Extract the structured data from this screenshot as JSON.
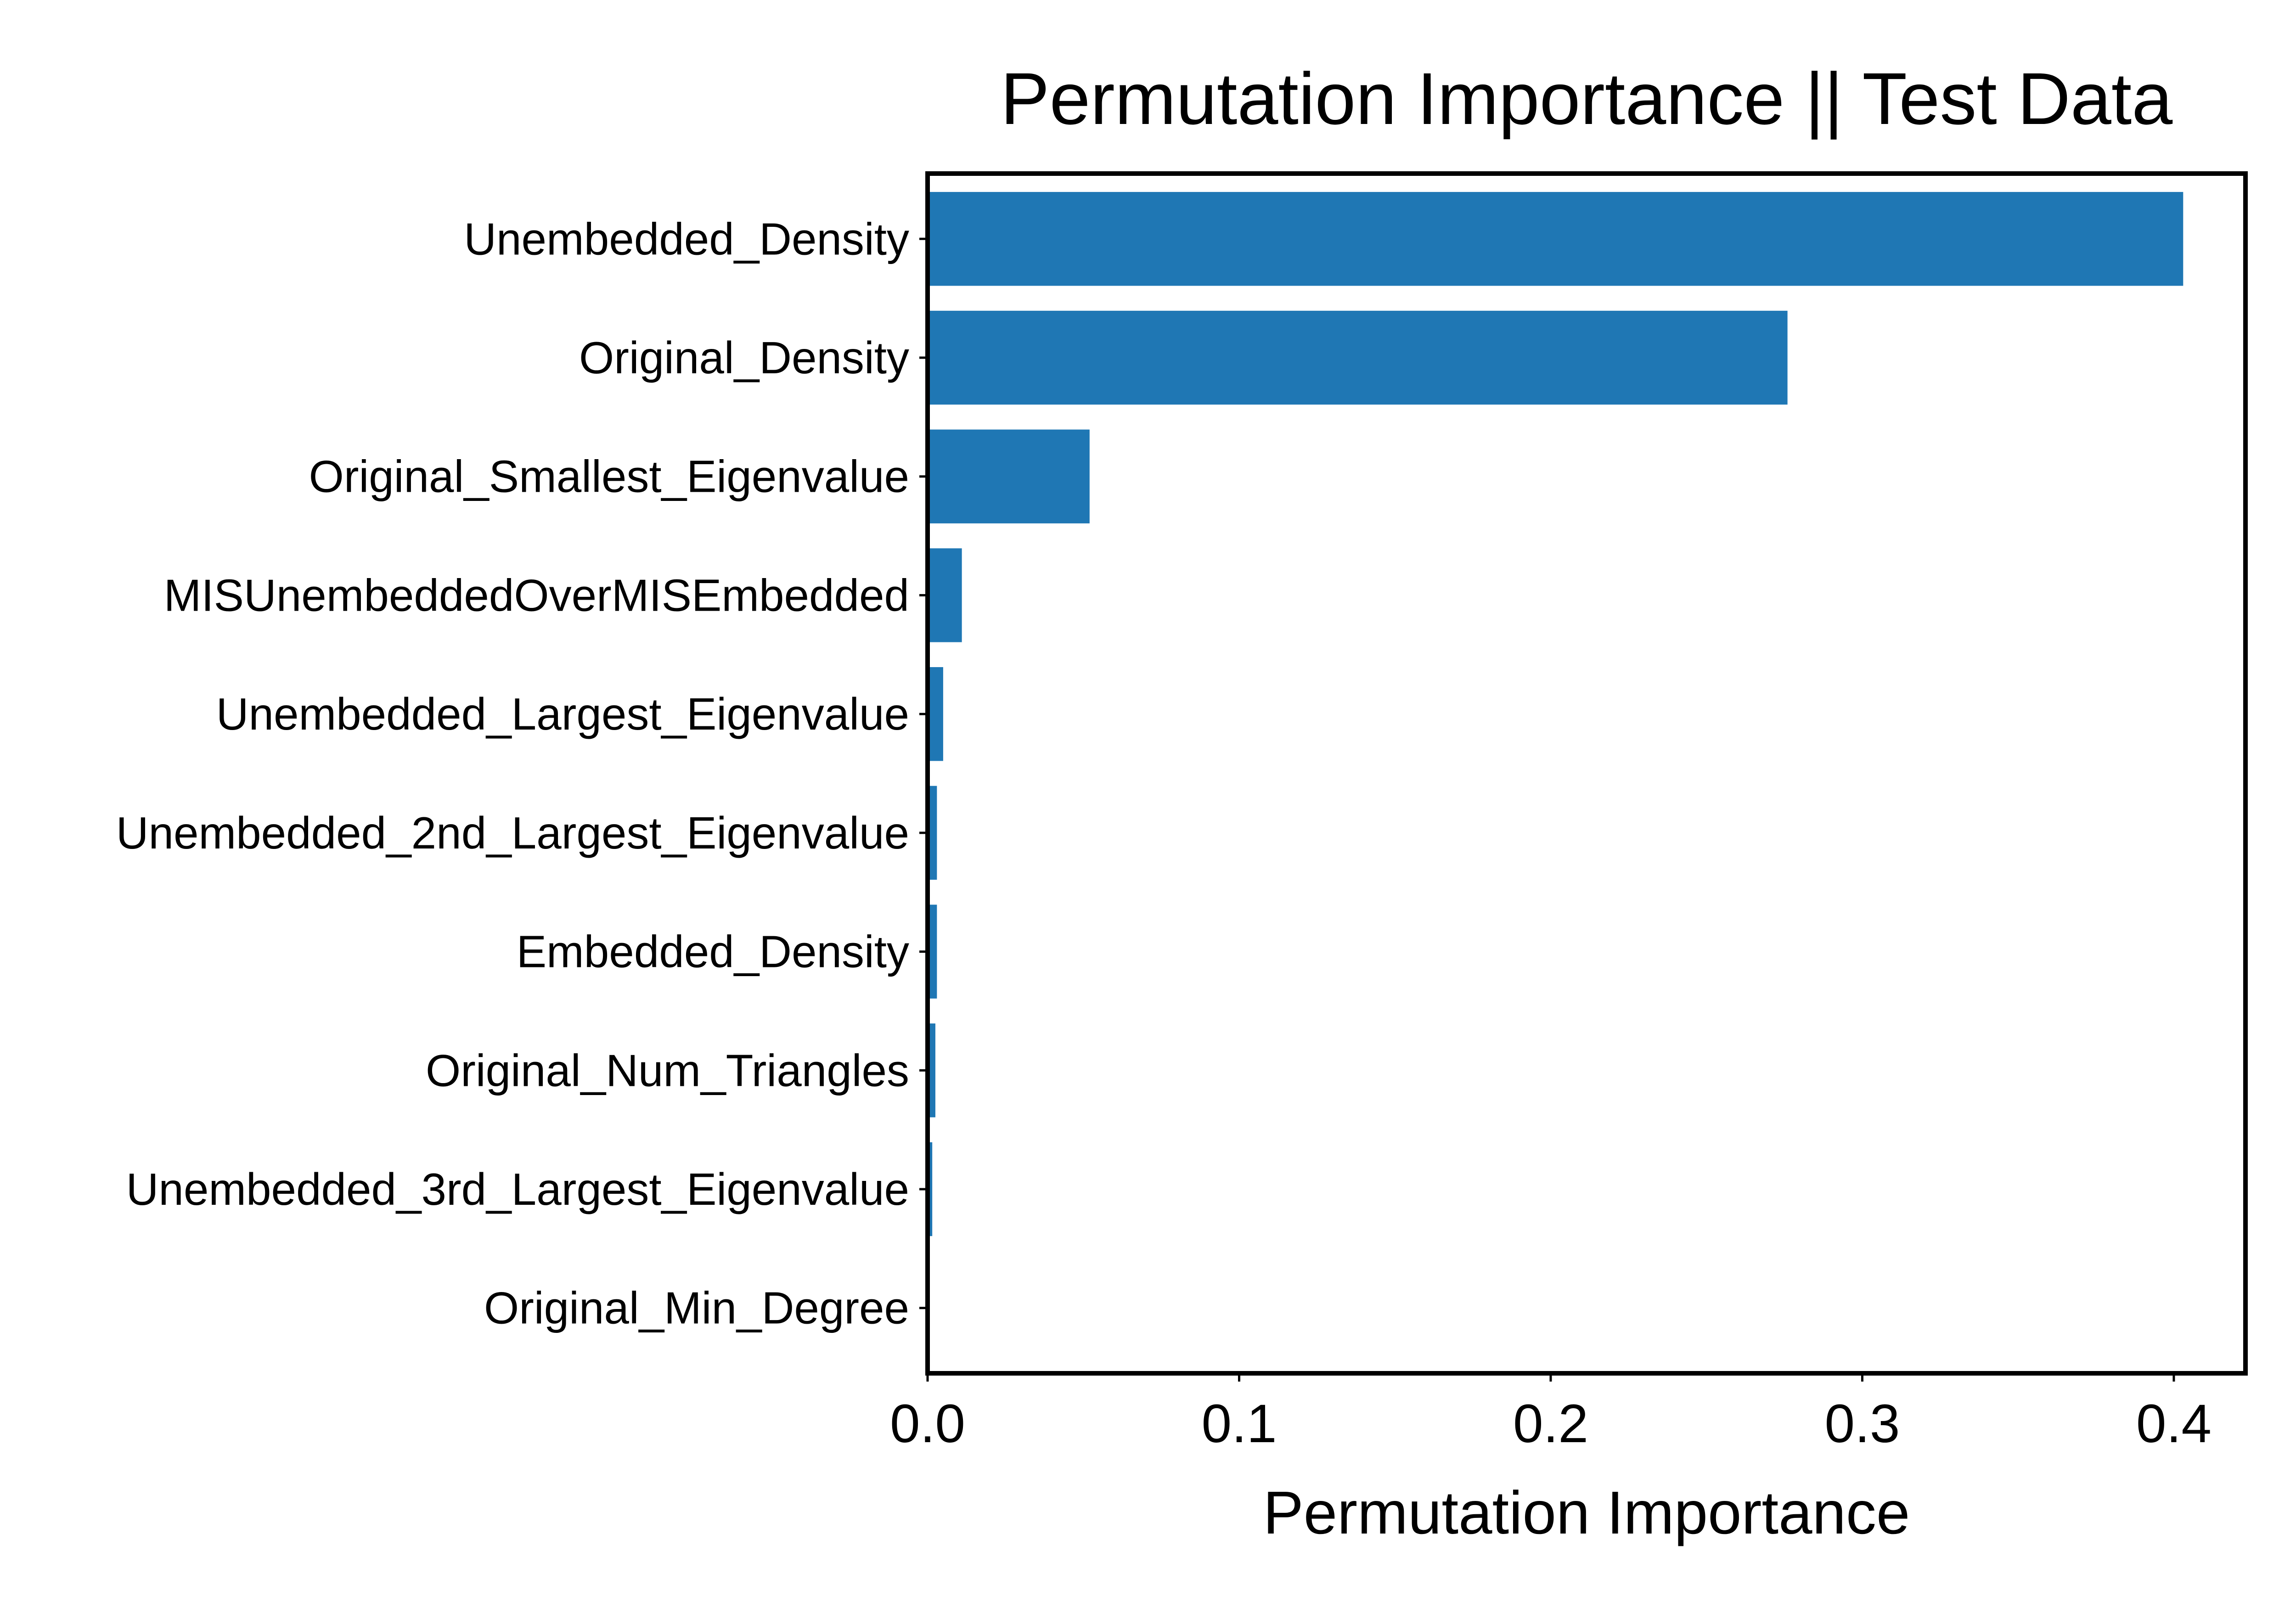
{
  "chart_data": {
    "type": "bar",
    "orientation": "horizontal",
    "title": "Permutation Importance || Test Data",
    "xlabel": "Permutation Importance",
    "ylabel": "",
    "xlim": [
      0,
      0.423
    ],
    "x_ticks": [
      "0.0",
      "0.1",
      "0.2",
      "0.3",
      "0.4"
    ],
    "grid": false,
    "bar_color": "#1f77b4",
    "categories": [
      "Unembedded_Density",
      "Original_Density",
      "Original_Smallest_Eigenvalue",
      "MISUnembeddedOverMISEmbedded",
      "Unembedded_Largest_Eigenvalue",
      "Unembedded_2nd_Largest_Eigenvalue",
      "Embedded_Density",
      "Original_Num_Triangles",
      "Unembedded_3rd_Largest_Eigenvalue",
      "Original_Min_Degree"
    ],
    "values": [
      0.403,
      0.276,
      0.052,
      0.011,
      0.005,
      0.003,
      0.003,
      0.0025,
      0.0015,
      0.0
    ]
  }
}
